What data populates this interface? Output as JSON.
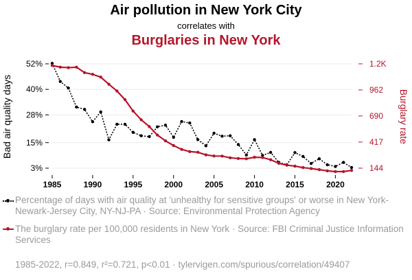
{
  "title": {
    "line1": "Air pollution in New York City",
    "line2": "correlates with",
    "line3": "Burglaries in New York"
  },
  "colors": {
    "series1": "#000000",
    "series2": "#b5162b",
    "muted": "#9a9a9a",
    "grid": "#ebebeb"
  },
  "chart_data": {
    "type": "line",
    "x": [
      1985,
      1986,
      1987,
      1988,
      1989,
      1990,
      1991,
      1992,
      1993,
      1994,
      1995,
      1996,
      1997,
      1998,
      1999,
      2000,
      2001,
      2002,
      2003,
      2004,
      2005,
      2006,
      2007,
      2008,
      2009,
      2010,
      2011,
      2012,
      2013,
      2014,
      2015,
      2016,
      2017,
      2018,
      2019,
      2020,
      2021,
      2022
    ],
    "xticks": [
      1985,
      1990,
      1995,
      2000,
      2005,
      2010,
      2015,
      2020
    ],
    "xlim": [
      1985,
      2022
    ],
    "series": [
      {
        "name": "Bad air quality days",
        "axis": "left",
        "style": "dotted",
        "values": [
          52.2,
          43.7,
          40.6,
          31.7,
          30.6,
          24.8,
          29.4,
          16.3,
          23.6,
          23.6,
          19.8,
          18.2,
          17.8,
          22.4,
          23.2,
          17.5,
          24.9,
          24.2,
          16.4,
          13.5,
          19.4,
          18.0,
          18.2,
          14.1,
          9.2,
          16.4,
          9.0,
          10.4,
          5.7,
          4.6,
          10.3,
          8.5,
          5.2,
          7.4,
          4.6,
          3.8,
          5.7,
          3.3
        ]
      },
      {
        "name": "Burglary rate",
        "axis": "right",
        "style": "solid",
        "values": [
          1218,
          1200,
          1195,
          1200,
          1143,
          1125,
          1096,
          1022,
          951,
          860,
          741,
          650,
          579,
          490,
          430,
          380,
          340,
          317,
          310,
          283,
          271,
          270,
          252,
          245,
          242,
          258,
          255,
          232,
          195,
          175,
          165,
          150,
          140,
          128,
          116,
          108,
          108,
          120
        ]
      }
    ],
    "left_axis": {
      "label": "Bad air quality days",
      "ticks": [
        "52%",
        "40%",
        "28%",
        "15%",
        "3%"
      ],
      "tick_values": [
        52,
        40,
        28,
        15,
        3
      ],
      "lim": [
        3,
        52
      ]
    },
    "right_axis": {
      "label": "Burglary rate",
      "ticks": [
        "1.2K",
        "962",
        "690",
        "417",
        "144"
      ],
      "tick_values": [
        1235,
        962,
        690,
        417,
        144
      ],
      "lim": [
        144,
        1235
      ]
    },
    "grid": true
  },
  "legend": {
    "item1": "Percentage of days with air quality at 'unhealthy for sensitive groups' or worse in New York-Newark-Jersey City, NY-NJ-PA · Source: Environmental Protection Agency",
    "item2": "The burglary rate per 100,000 residents in New York · Source: FBI Criminal Justice Information Services"
  },
  "footer": "1985-2022, r=0.849, r²=0.721, p<0.01 · tylervigen.com/spurious/correlation/49407"
}
